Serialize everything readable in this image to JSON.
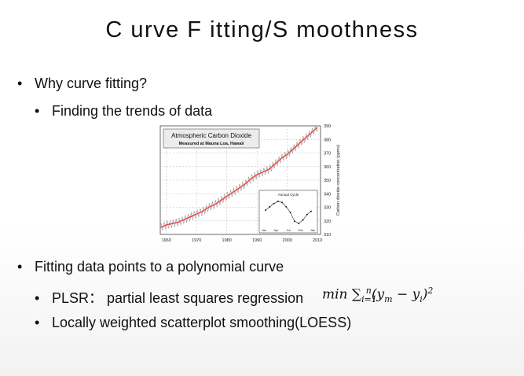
{
  "title": "C urve F itting/S moothness",
  "bullets": {
    "b1": "Why curve fitting?",
    "b1_sub": "Finding the trends of data",
    "b2": "Fitting data points to a polynomial curve",
    "b2_sub1": "PLSR： partial least squares regression",
    "b2_sub2": "Locally weighted scatterplot smoothing(LOESS)"
  },
  "formula": {
    "min": "min",
    "sum": "∑",
    "sub": "i=1",
    "sup": "n",
    "body": "(y",
    "ym_sub": "m",
    "minus": " − y",
    "yi_sub": "i",
    "close": ")",
    "power": "2"
  },
  "chart_data": {
    "type": "line",
    "title": "Atmospheric Carbon Dioxide",
    "subtitle": "Measured at Mauna Loa, Hawaii",
    "xlabel": "",
    "ylabel": "Carbon dioxide concentration (ppmv)",
    "xlim": [
      1958,
      2011
    ],
    "ylim": [
      310,
      390
    ],
    "x_ticks": [
      "1960",
      "1970",
      "1980",
      "1990",
      "2000",
      "2010"
    ],
    "y_ticks": [
      "310",
      "320",
      "330",
      "340",
      "350",
      "360",
      "370",
      "380",
      "390"
    ],
    "grid": true,
    "series": [
      {
        "x": [
          1958,
          1960,
          1962,
          1964,
          1966,
          1968,
          1970,
          1972,
          1974,
          1976,
          1978,
          1980,
          1982,
          1984,
          1986,
          1988,
          1990,
          1992,
          1994,
          1996,
          1998,
          2000,
          2002,
          2004,
          2006,
          2008,
          2010
        ],
        "y": [
          315,
          317,
          318,
          319,
          321,
          323,
          325,
          327,
          330,
          332,
          335,
          338,
          341,
          344,
          347,
          351,
          354,
          356,
          358,
          362,
          366,
          369,
          373,
          377,
          381,
          385,
          389
        ],
        "color": "#e8423f"
      }
    ],
    "inset": {
      "title": "Annual Cycle",
      "x_ticks": [
        "Jan",
        "Apr",
        "Jul",
        "Oct",
        "Jan"
      ],
      "values": [
        0.2,
        0.5,
        0.8,
        1.0,
        0.9,
        0.5,
        0.0,
        -0.8,
        -1.0,
        -0.7,
        -0.2,
        0.1
      ]
    }
  }
}
